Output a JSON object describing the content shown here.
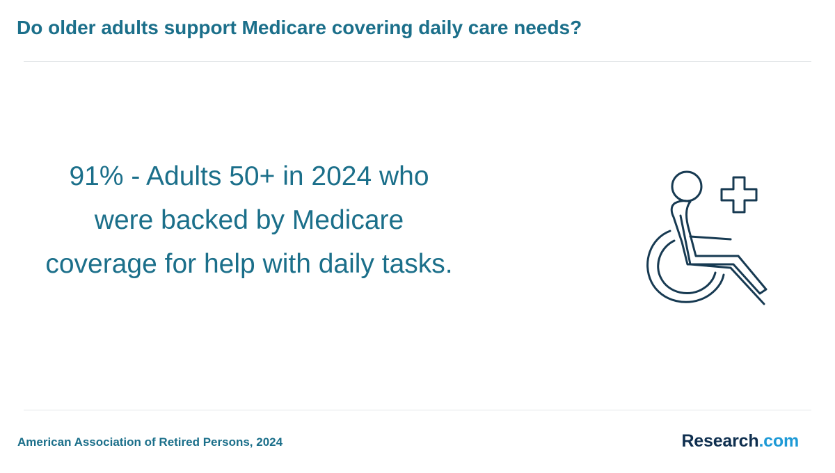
{
  "header": {
    "title": "Do older adults support Medicare covering daily care needs?"
  },
  "main": {
    "statement": "91% - Adults 50+ in 2024 who were backed by Medicare coverage for help with daily tasks.",
    "icon": "wheelchair-medical-cross-icon"
  },
  "footer": {
    "source": "American Association of Retired Persons, 2024",
    "brand_main": "Research",
    "brand_suffix": ".com"
  },
  "colors": {
    "accent": "#1b6f8a",
    "icon": "#173a52",
    "brand_dark": "#0f2f4f",
    "brand_light": "#1e9ad6"
  }
}
